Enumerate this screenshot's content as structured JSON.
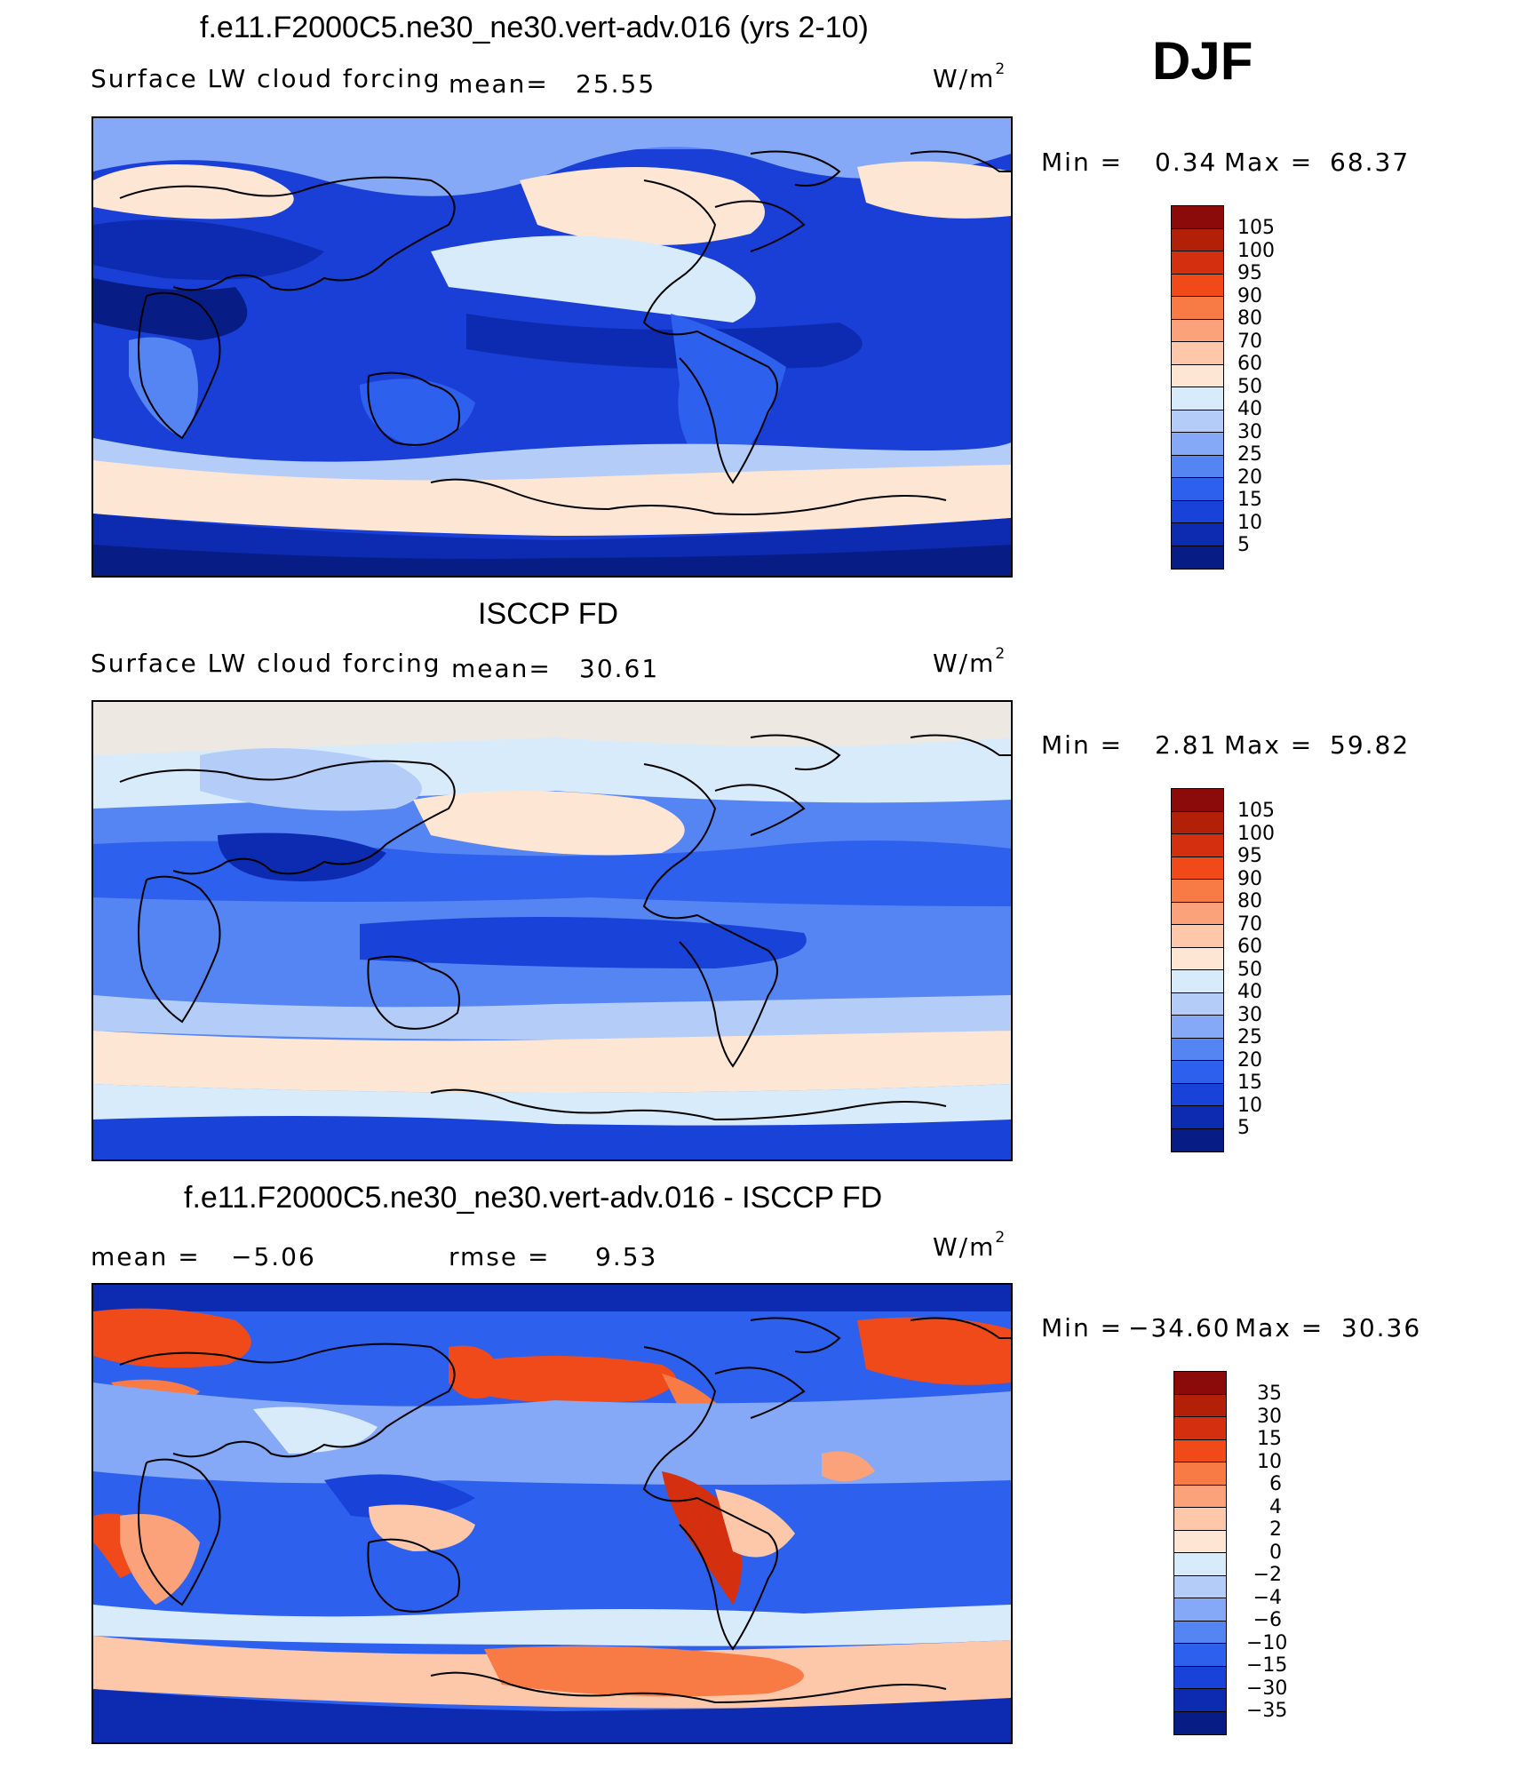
{
  "season": "DJF",
  "panels": [
    {
      "title": "f.e11.F2000C5.ne30_ne30.vert-adv.016 (yrs 2-10)",
      "left_label": "Surface LW cloud forcing",
      "stat1_label": "mean=",
      "stat1_value": "25.55",
      "units_base": "W/m",
      "units_exp": "2",
      "min_label": "Min =",
      "min_value": "0.34",
      "max_label": "Max =",
      "max_value": "68.37"
    },
    {
      "title": "ISCCP FD",
      "left_label": "Surface LW cloud forcing",
      "stat1_label": "mean=",
      "stat1_value": "30.61",
      "units_base": "W/m",
      "units_exp": "2",
      "min_label": "Min =",
      "min_value": "2.81",
      "max_label": "Max =",
      "max_value": "59.82"
    },
    {
      "title": "f.e11.F2000C5.ne30_ne30.vert-adv.016 - ISCCP FD",
      "left_label": "mean =",
      "left_value": "−5.06",
      "stat2_label": "rmse =",
      "stat2_value": "9.53",
      "units_base": "W/m",
      "units_exp": "2",
      "min_label": "Min =",
      "min_value": "−34.60",
      "max_label": "Max =",
      "max_value": "30.36"
    }
  ],
  "chart_data": [
    {
      "type": "heatmap",
      "title": "f.e11.F2000C5.ne30_ne30.vert-adv.016 (yrs 2-10)",
      "variable": "Surface LW cloud forcing",
      "units": "W/m2",
      "mean": 25.55,
      "min": 0.34,
      "max": 68.37,
      "colorbar_levels": [
        5,
        10,
        15,
        20,
        25,
        30,
        40,
        50,
        60,
        70,
        80,
        90,
        95,
        100,
        105
      ],
      "colorbar_labels": [
        "105",
        "100",
        "95",
        "90",
        "80",
        "70",
        "60",
        "50",
        "40",
        "30",
        "25",
        "20",
        "15",
        "10",
        "5"
      ]
    },
    {
      "type": "heatmap",
      "title": "ISCCP FD",
      "variable": "Surface LW cloud forcing",
      "units": "W/m2",
      "mean": 30.61,
      "min": 2.81,
      "max": 59.82,
      "colorbar_levels": [
        5,
        10,
        15,
        20,
        25,
        30,
        40,
        50,
        60,
        70,
        80,
        90,
        95,
        100,
        105
      ],
      "colorbar_labels": [
        "105",
        "100",
        "95",
        "90",
        "80",
        "70",
        "60",
        "50",
        "40",
        "30",
        "25",
        "20",
        "15",
        "10",
        "5"
      ]
    },
    {
      "type": "heatmap",
      "title": "f.e11.F2000C5.ne30_ne30.vert-adv.016 - ISCCP FD",
      "units": "W/m2",
      "mean": -5.06,
      "rmse": 9.53,
      "min": -34.6,
      "max": 30.36,
      "colorbar_levels": [
        -35,
        -30,
        -15,
        -10,
        -6,
        -4,
        -2,
        0,
        2,
        4,
        6,
        10,
        15,
        30,
        35
      ],
      "colorbar_labels": [
        "35",
        "30",
        "15",
        "10",
        "6",
        "4",
        "2",
        "0",
        "−2",
        "−4",
        "−6",
        "−10",
        "−15",
        "−30",
        "−35"
      ]
    }
  ],
  "colors": {
    "scale": [
      "#8b0a0a",
      "#b22008",
      "#d42f0f",
      "#f04a1a",
      "#f87a45",
      "#fba27a",
      "#fdc8aa",
      "#fde6d4",
      "#d8ebfb",
      "#b3cdf8",
      "#85a9f6",
      "#5584f3",
      "#2e60ee",
      "#1842d8",
      "#0d2bb0",
      "#071d85"
    ]
  }
}
